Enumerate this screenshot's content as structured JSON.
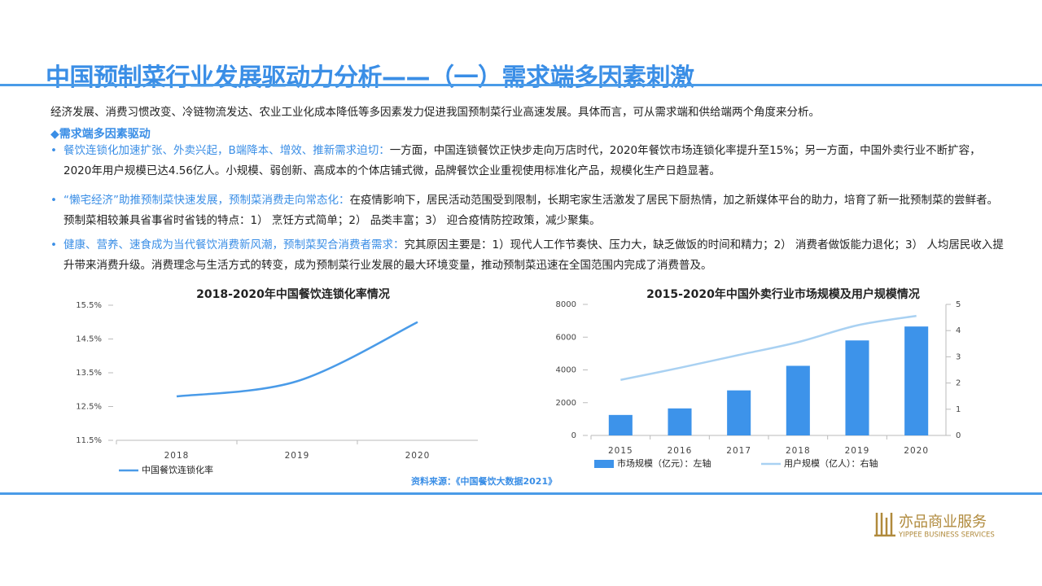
{
  "header": {
    "title": "中国预制菜行业发展驱动力分析——（一）需求端多因素刺激"
  },
  "intro": "经济发展、消费习惯改变、冷链物流发达、农业工业化成本降低等多因素发力促进我国预制菜行业高速发展。具体而言，可从需求端和供给端两个角度来分析。",
  "section": "◆需求端多因素驱动",
  "bullets": [
    {
      "lead": "餐饮连锁化加速扩张、外卖兴起，B端降本、增效、推新需求迫切：",
      "text": "一方面，中国连锁餐饮正快步走向万店时代，2020年餐饮市场连锁化率提升至15%；另一方面，中国外卖行业不断扩容，2020年用户规模已达4.56亿人。小规模、弱创新、高成本的个体店铺式微，品牌餐饮企业重视使用标准化产品，规模化生产日趋显著。"
    },
    {
      "lead": "“懒宅经济”助推预制菜快速发展，预制菜消费走向常态化：",
      "text": "在疫情影响下，居民活动范围受到限制，长期宅家生活激发了居民下厨热情，加之新媒体平台的助力，培育了新一批预制菜的尝鲜者。预制菜相较兼具省事省时省钱的特点：1） 烹饪方式简单；2） 品类丰富；3） 迎合疫情防控政策，减少聚集。"
    },
    {
      "lead": "健康、营养、速食成为当代餐饮消费新风潮，预制菜契合消费者需求：",
      "text": "究其原因主要是：1）现代人工作节奏快、压力大，缺乏做饭的时间和精力；2） 消费者做饭能力退化；3） 人均居民收入提升带来消费升级。消费理念与生活方式的转变，成为预制菜行业发展的最大环境变量，推动预制菜迅速在全国范围内完成了消费普及。"
    }
  ],
  "chart_data": [
    {
      "type": "line",
      "title": "2018-2020年中国餐饮连锁化率情况",
      "categories": [
        "2018",
        "2019",
        "2020"
      ],
      "series": [
        {
          "name": "中国餐饮连锁化率",
          "color": "#4a9be8",
          "type": "line",
          "values": [
            12.8,
            13.25,
            15
          ]
        }
      ],
      "ylim": [
        11.5,
        15.5
      ],
      "yticks": [
        {
          "value": 11.5,
          "label": "11.5%"
        },
        {
          "value": 12.5,
          "label": "12.5%"
        },
        {
          "value": 13.5,
          "label": "13.5%"
        },
        {
          "value": 14.5,
          "label": "14.5%"
        },
        {
          "value": 15.5,
          "label": "15.5%"
        }
      ]
    },
    {
      "type": "bar",
      "title": "2015-2020年中国外卖行业市场规模及用户规模情况",
      "categories": [
        "2015",
        "2016",
        "2017",
        "2018",
        "2019",
        "2020"
      ],
      "series": [
        {
          "name": "市场规模（亿元）：左轴",
          "color": "#3d93ea",
          "type": "bar",
          "values": [
            1250,
            1650,
            2750,
            4250,
            5800,
            6650
          ]
        },
        {
          "name": "用户规模（亿人）：右轴",
          "color": "#a9d1f2",
          "type": "line",
          "axis": "y2",
          "values": [
            2.12,
            2.58,
            3.07,
            3.56,
            4.2,
            4.56
          ]
        }
      ],
      "ylim": [
        0,
        8000
      ],
      "yticks": [
        0,
        2000,
        4000,
        6000,
        8000
      ],
      "y2lim": [
        0,
        5
      ],
      "y2ticks": [
        0,
        1,
        2,
        3,
        4,
        5
      ]
    }
  ],
  "source": "资料来源：《中国餐饮大数据2021》",
  "logo": {
    "name": "亦品商业服务",
    "english": "YIPPEE BUSINESS SERVICES"
  }
}
